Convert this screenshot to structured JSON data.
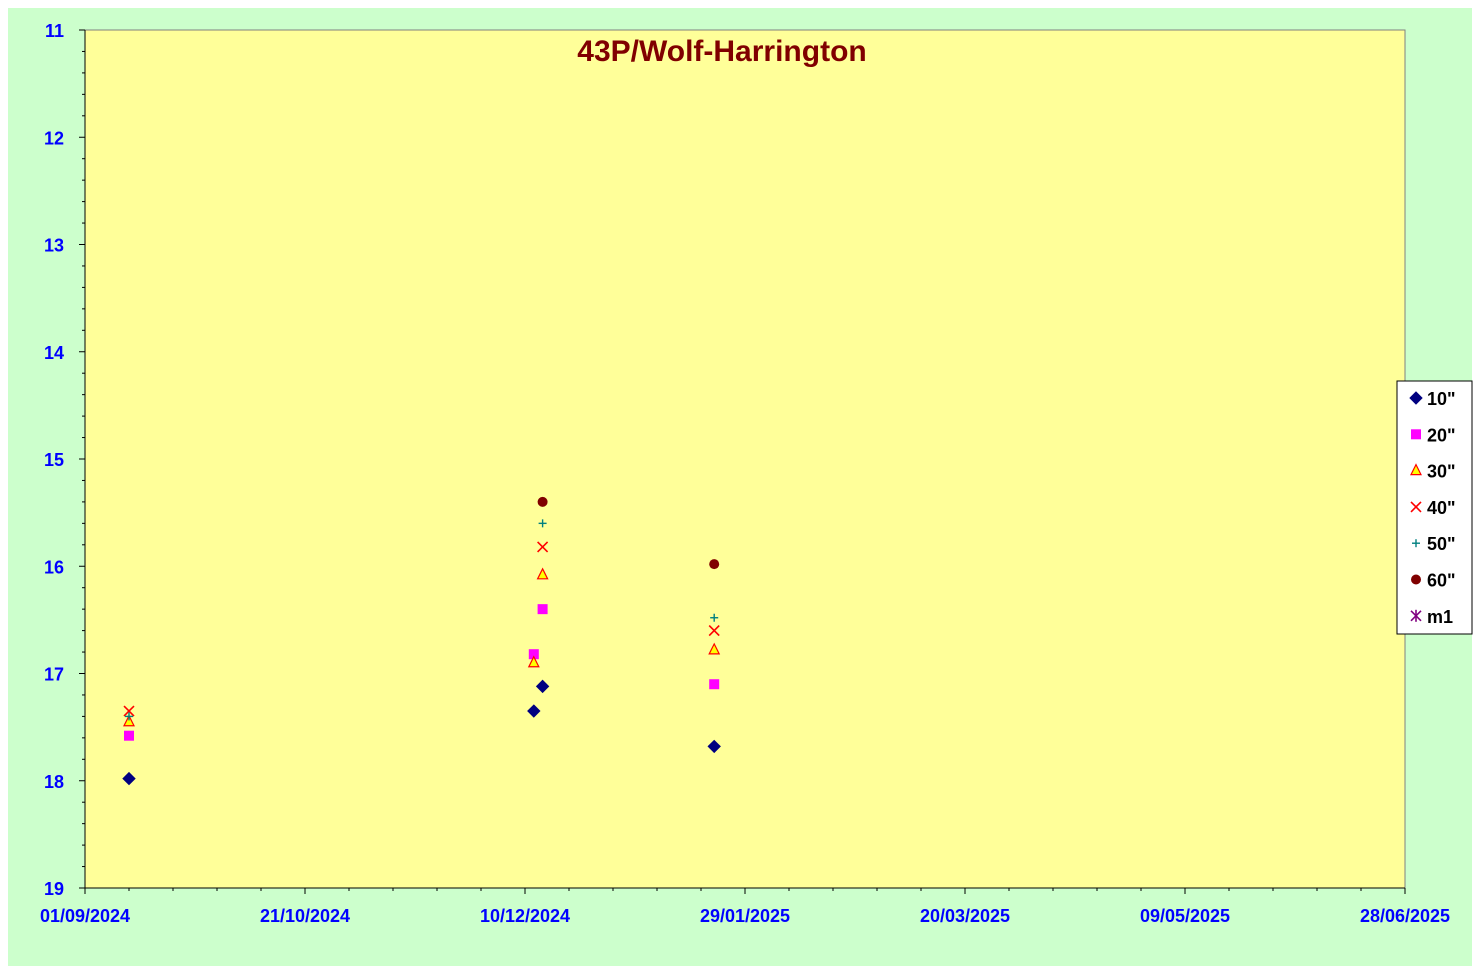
{
  "chart_data": {
    "type": "scatter",
    "title": "43P/Wolf-Harrington",
    "xlabel": "",
    "ylabel": "",
    "x_axis": {
      "type": "date",
      "min": "2024-09-01",
      "max": "2025-06-28",
      "tick_labels": [
        "01/09/2024",
        "21/10/2024",
        "10/12/2024",
        "29/01/2025",
        "20/03/2025",
        "09/05/2025",
        "28/06/2025"
      ],
      "tick_dates": [
        "2024-09-01",
        "2024-10-21",
        "2024-12-10",
        "2025-01-29",
        "2025-03-20",
        "2025-05-09",
        "2025-06-28"
      ]
    },
    "y_axis": {
      "min": 11,
      "max": 19,
      "reversed": true,
      "tick_labels": [
        "11",
        "12",
        "13",
        "14",
        "15",
        "16",
        "17",
        "18",
        "19"
      ]
    },
    "grid": false,
    "legend_position": "right",
    "series": [
      {
        "name": "10\"",
        "marker": "diamond",
        "color": "#000080",
        "points": [
          {
            "x": "2024-09-11",
            "y": 17.98
          },
          {
            "x": "2024-12-12",
            "y": 17.35
          },
          {
            "x": "2024-12-14",
            "y": 17.12
          },
          {
            "x": "2025-01-22",
            "y": 17.68
          }
        ]
      },
      {
        "name": "20\"",
        "marker": "square",
        "color": "#ff00ff",
        "points": [
          {
            "x": "2024-09-11",
            "y": 17.58
          },
          {
            "x": "2024-12-12",
            "y": 16.82
          },
          {
            "x": "2024-12-14",
            "y": 16.4
          },
          {
            "x": "2025-01-22",
            "y": 17.1
          }
        ]
      },
      {
        "name": "30\"",
        "marker": "triangle",
        "color": "#ffff00",
        "points": [
          {
            "x": "2024-09-11",
            "y": 17.45
          },
          {
            "x": "2024-12-12",
            "y": 16.9
          },
          {
            "x": "2024-12-14",
            "y": 16.08
          },
          {
            "x": "2025-01-22",
            "y": 16.78
          }
        ]
      },
      {
        "name": "40\"",
        "marker": "x",
        "color": "#ff0000",
        "points": [
          {
            "x": "2024-09-11",
            "y": 17.35
          },
          {
            "x": "2024-12-14",
            "y": 15.82
          },
          {
            "x": "2025-01-22",
            "y": 16.6
          }
        ]
      },
      {
        "name": "50\"",
        "marker": "plus",
        "color": "#008080",
        "points": [
          {
            "x": "2024-09-11",
            "y": 17.4
          },
          {
            "x": "2024-12-14",
            "y": 15.6
          },
          {
            "x": "2025-01-22",
            "y": 16.48
          }
        ]
      },
      {
        "name": "60\"",
        "marker": "circle",
        "color": "#800000",
        "points": [
          {
            "x": "2024-12-14",
            "y": 15.4
          },
          {
            "x": "2025-01-22",
            "y": 15.98
          }
        ]
      },
      {
        "name": "m1",
        "marker": "asterisk",
        "color": "#800080",
        "points": []
      }
    ],
    "colors": {
      "background": "#ccffcc",
      "plot_area": "#ffff99",
      "axis_text": "#0000ff",
      "title": "#800000"
    }
  }
}
